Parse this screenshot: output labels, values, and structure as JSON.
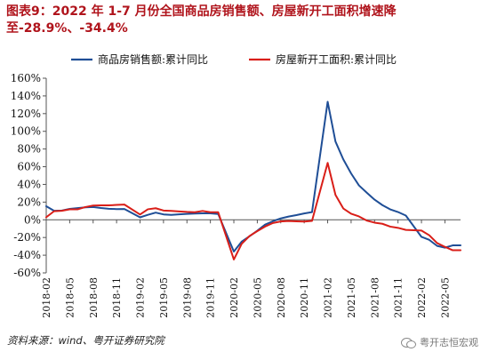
{
  "title": "图表9：2022 年 1-7 月份全国商品房销售额、房屋新开工面积增速降至-28.9%、-34.4%",
  "source": "资料来源：wind、粤开证券研究院",
  "watermark": "粤开志恒宏观",
  "colors": {
    "title": "#b0141c",
    "series1": "#1f4e96",
    "series2": "#d91e18"
  },
  "chart_data": {
    "type": "line",
    "title": "图表9：2022 年 1-7 月份全国商品房销售额、房屋新开工面积增速降至-28.9%、-34.4%",
    "legend_position": "top",
    "grid": false,
    "x_ticks": [
      "2018-02",
      "2018-05",
      "2018-08",
      "2018-11",
      "2019-02",
      "2019-05",
      "2019-08",
      "2019-11",
      "2020-02",
      "2020-05",
      "2020-08",
      "2020-11",
      "2021-02",
      "2021-05",
      "2021-08",
      "2021-11",
      "2022-02",
      "2022-05"
    ],
    "y_ticks": [
      "160%",
      "140%",
      "120%",
      "100%",
      "80%",
      "60%",
      "40%",
      "20%",
      "0%",
      "-20%",
      "-40%",
      "-60%"
    ],
    "ylim": [
      -60,
      160
    ],
    "y_unit": "%",
    "x_start": "2018-02",
    "x_end": "2022-07",
    "series": [
      {
        "name": "商品房销售额:累计同比",
        "color": "#1f4e96",
        "x": [
          "2018-02",
          "2018-03",
          "2018-04",
          "2018-05",
          "2018-06",
          "2018-07",
          "2018-08",
          "2018-09",
          "2018-10",
          "2018-11",
          "2018-12",
          "2019-02",
          "2019-03",
          "2019-04",
          "2019-05",
          "2019-06",
          "2019-07",
          "2019-08",
          "2019-09",
          "2019-10",
          "2019-11",
          "2019-12",
          "2020-02",
          "2020-03",
          "2020-04",
          "2020-05",
          "2020-06",
          "2020-07",
          "2020-08",
          "2020-09",
          "2020-10",
          "2020-11",
          "2020-12",
          "2021-02",
          "2021-03",
          "2021-04",
          "2021-05",
          "2021-06",
          "2021-07",
          "2021-08",
          "2021-09",
          "2021-10",
          "2021-11",
          "2021-12",
          "2022-02",
          "2022-03",
          "2022-04",
          "2022-05",
          "2022-06",
          "2022-07"
        ],
        "values": [
          15.3,
          10.2,
          10.5,
          12.3,
          13.2,
          14.1,
          14.5,
          13.3,
          12.5,
          12.1,
          12.2,
          2.8,
          5.6,
          8.1,
          6.1,
          5.6,
          6.2,
          6.7,
          7.1,
          7.3,
          7.3,
          6.5,
          -35.9,
          -24.7,
          -18.6,
          -12.3,
          -5.4,
          -1.6,
          1.6,
          3.7,
          5.3,
          7.2,
          8.7,
          133.4,
          88.5,
          68.3,
          52.4,
          38.9,
          30.7,
          22.8,
          16.6,
          11.8,
          8.8,
          4.8,
          -19.3,
          -22.7,
          -29.5,
          -31.5,
          -28.9,
          -28.9
        ]
      },
      {
        "name": "房屋新开工面积:累计同比",
        "color": "#d91e18",
        "x": [
          "2018-02",
          "2018-03",
          "2018-04",
          "2018-05",
          "2018-06",
          "2018-07",
          "2018-08",
          "2018-09",
          "2018-10",
          "2018-11",
          "2018-12",
          "2019-02",
          "2019-03",
          "2019-04",
          "2019-05",
          "2019-06",
          "2019-07",
          "2019-08",
          "2019-09",
          "2019-10",
          "2019-11",
          "2019-12",
          "2020-02",
          "2020-03",
          "2020-04",
          "2020-05",
          "2020-06",
          "2020-07",
          "2020-08",
          "2020-09",
          "2020-10",
          "2020-11",
          "2020-12",
          "2021-02",
          "2021-03",
          "2021-04",
          "2021-05",
          "2021-06",
          "2021-07",
          "2021-08",
          "2021-09",
          "2021-10",
          "2021-11",
          "2021-12",
          "2022-02",
          "2022-03",
          "2022-04",
          "2022-05",
          "2022-06",
          "2022-07"
        ],
        "values": [
          2.9,
          9.7,
          10.2,
          11.8,
          11.8,
          14.4,
          16.1,
          16.4,
          16.3,
          16.8,
          17.2,
          6.0,
          11.9,
          13.1,
          10.5,
          10.1,
          9.5,
          8.9,
          8.6,
          10.0,
          8.6,
          8.5,
          -44.9,
          -27.2,
          -18.4,
          -12.8,
          -7.6,
          -3.6,
          -1.9,
          -1.4,
          -1.8,
          -2.0,
          -1.2,
          64.3,
          28.2,
          12.8,
          6.9,
          3.8,
          -0.9,
          -3.2,
          -4.5,
          -7.7,
          -9.1,
          -11.4,
          -12.2,
          -17.5,
          -26.3,
          -30.6,
          -34.4,
          -34.4
        ]
      }
    ]
  }
}
